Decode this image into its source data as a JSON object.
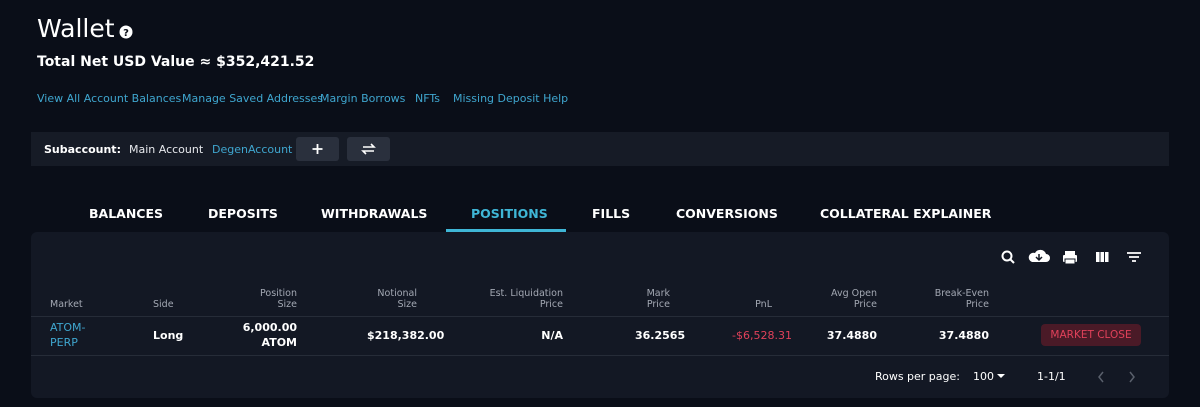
{
  "header": {
    "title": "Wallet",
    "total": "Total Net USD Value ≈ $352,421.52"
  },
  "links": [
    "View All Account Balances",
    "Manage Saved Addresses",
    "Margin Borrows",
    "NFTs",
    "Missing Deposit Help"
  ],
  "subaccount": {
    "label": "Subaccount:",
    "accounts": [
      "Main Account",
      "DegenAccount"
    ]
  },
  "tabs": [
    "BALANCES",
    "DEPOSITS",
    "WITHDRAWALS",
    "POSITIONS",
    "FILLS",
    "CONVERSIONS",
    "COLLATERAL EXPLAINER"
  ],
  "table": {
    "columns": [
      "Market",
      "Side",
      "Position Size",
      "Notional Size",
      "Est. Liquidation Price",
      "Mark Price",
      "PnL",
      "Avg Open Price",
      "Break-Even Price"
    ],
    "rows": [
      [
        "ATOM-PERP",
        "Long",
        "6,000.00 ATOM",
        "$218,382.00",
        "N/A",
        "36.2565",
        "-$6,528.31",
        "37.4880",
        "37.4880"
      ]
    ],
    "action": "MARKET CLOSE"
  },
  "footer": {
    "rows_per_page_label": "Rows per page:",
    "rows_per_page": "100",
    "range": "1-1/1"
  }
}
